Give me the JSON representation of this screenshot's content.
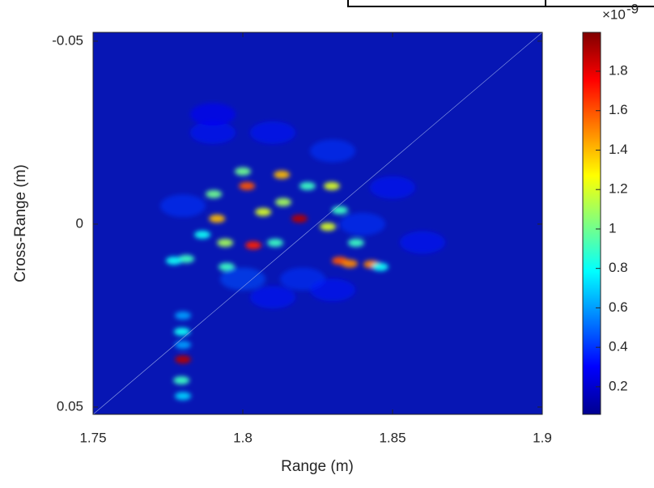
{
  "chart_data": {
    "type": "heatmap",
    "xlabel": "Range (m)",
    "ylabel": "Cross-Range (m)",
    "xlim": [
      1.75,
      1.9
    ],
    "xticks": [
      1.75,
      1.8,
      1.85,
      1.9
    ],
    "ylim": [
      -0.0524,
      0.052
    ],
    "yticks": [
      -0.05,
      0,
      0.05
    ],
    "y_reversed": true,
    "colormap": "jet",
    "clim": [
      0.06,
      1.997
    ],
    "colorbar_ticks": [
      0.2,
      0.4,
      0.6,
      0.8,
      1,
      1.2,
      1.4,
      1.6,
      1.8
    ],
    "colorbar_exponent": {
      "base": "×10",
      "power": "-9"
    },
    "x": [
      1.8014,
      1.8035,
      1.8189,
      1.78,
      1.8324,
      1.8357,
      1.843,
      1.813,
      1.7914,
      1.8297,
      1.8068,
      1.7941,
      1.8284,
      1.7903,
      1.8,
      1.8135,
      1.7811,
      1.777,
      1.7797,
      1.7795,
      1.78,
      1.8378,
      1.8459,
      1.8216,
      1.7946,
      1.8108,
      1.8324,
      1.7865,
      1.79,
      1.81,
      1.83,
      1.85,
      1.78,
      1.8,
      1.82,
      1.84,
      1.86,
      1.79,
      1.81,
      1.83,
      1.78,
      1.78
    ],
    "y": [
      -0.0104,
      0.0058,
      -0.0015,
      0.037,
      0.01,
      0.0108,
      0.011,
      -0.0135,
      -0.0015,
      -0.0104,
      -0.0033,
      0.0051,
      0.0007,
      -0.0082,
      -0.0144,
      -0.006,
      0.0095,
      0.01,
      0.0294,
      0.0427,
      0.025,
      0.0051,
      0.0117,
      -0.0104,
      0.0117,
      0.0051,
      -0.0038,
      0.0029,
      -0.025,
      -0.025,
      -0.02,
      -0.01,
      -0.005,
      0.015,
      0.015,
      0.0,
      0.005,
      -0.03,
      0.02,
      0.018,
      0.033,
      0.047
    ],
    "values": [
      1.6,
      1.7,
      1.9,
      1.9,
      1.6,
      1.5,
      1.5,
      1.4,
      1.4,
      1.2,
      1.2,
      1.1,
      1.2,
      1.0,
      1.0,
      1.1,
      0.9,
      0.8,
      0.8,
      0.9,
      0.6,
      0.9,
      0.8,
      0.9,
      0.9,
      0.9,
      0.9,
      0.8,
      0.35,
      0.35,
      0.4,
      0.35,
      0.4,
      0.45,
      0.4,
      0.4,
      0.35,
      0.3,
      0.35,
      0.35,
      0.6,
      0.7
    ]
  }
}
